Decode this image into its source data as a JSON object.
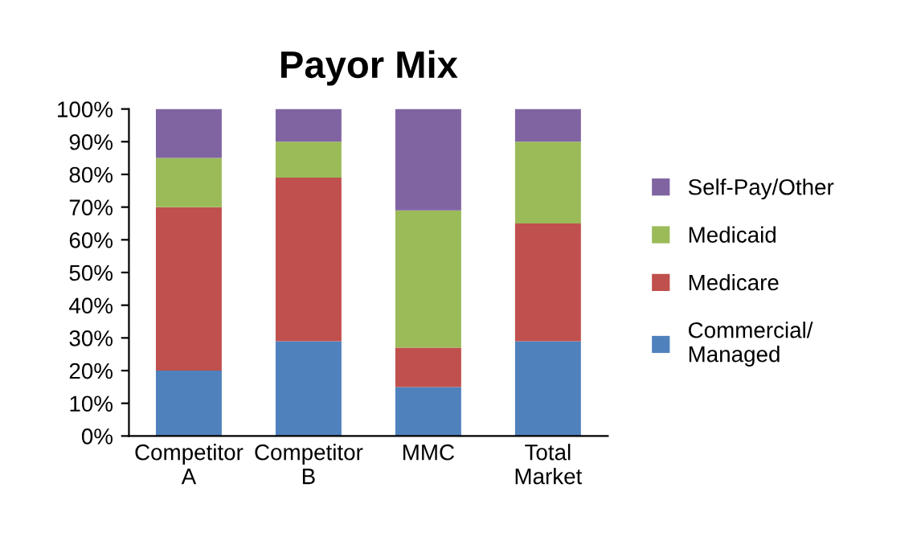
{
  "chart_data": {
    "type": "bar",
    "stacked": true,
    "title": "Payor Mix",
    "categories": [
      "Competitor A",
      "Competitor B",
      "MMC",
      "Total Market"
    ],
    "series": [
      {
        "name": "Commercial/ Managed",
        "color": "#4f81bd",
        "values": [
          20,
          29,
          15,
          29
        ]
      },
      {
        "name": "Medicare",
        "color": "#c0504d",
        "values": [
          50,
          50,
          12,
          36
        ]
      },
      {
        "name": "Medicaid",
        "color": "#9bbb59",
        "values": [
          15,
          11,
          42,
          25
        ]
      },
      {
        "name": "Self-Pay/Other",
        "color": "#8064a2",
        "values": [
          15,
          10,
          31,
          10
        ]
      }
    ],
    "ylim": [
      0,
      100
    ],
    "yticks": [
      {
        "value": 0,
        "label": "0%"
      },
      {
        "value": 10,
        "label": "10%"
      },
      {
        "value": 20,
        "label": "20%"
      },
      {
        "value": 30,
        "label": "30%"
      },
      {
        "value": 40,
        "label": "40%"
      },
      {
        "value": 50,
        "label": "50%"
      },
      {
        "value": 60,
        "label": "60%"
      },
      {
        "value": 70,
        "label": "70%"
      },
      {
        "value": 80,
        "label": "80%"
      },
      {
        "value": 90,
        "label": "90%"
      },
      {
        "value": 100,
        "label": "100%"
      }
    ],
    "grid": false,
    "legend": "right"
  }
}
